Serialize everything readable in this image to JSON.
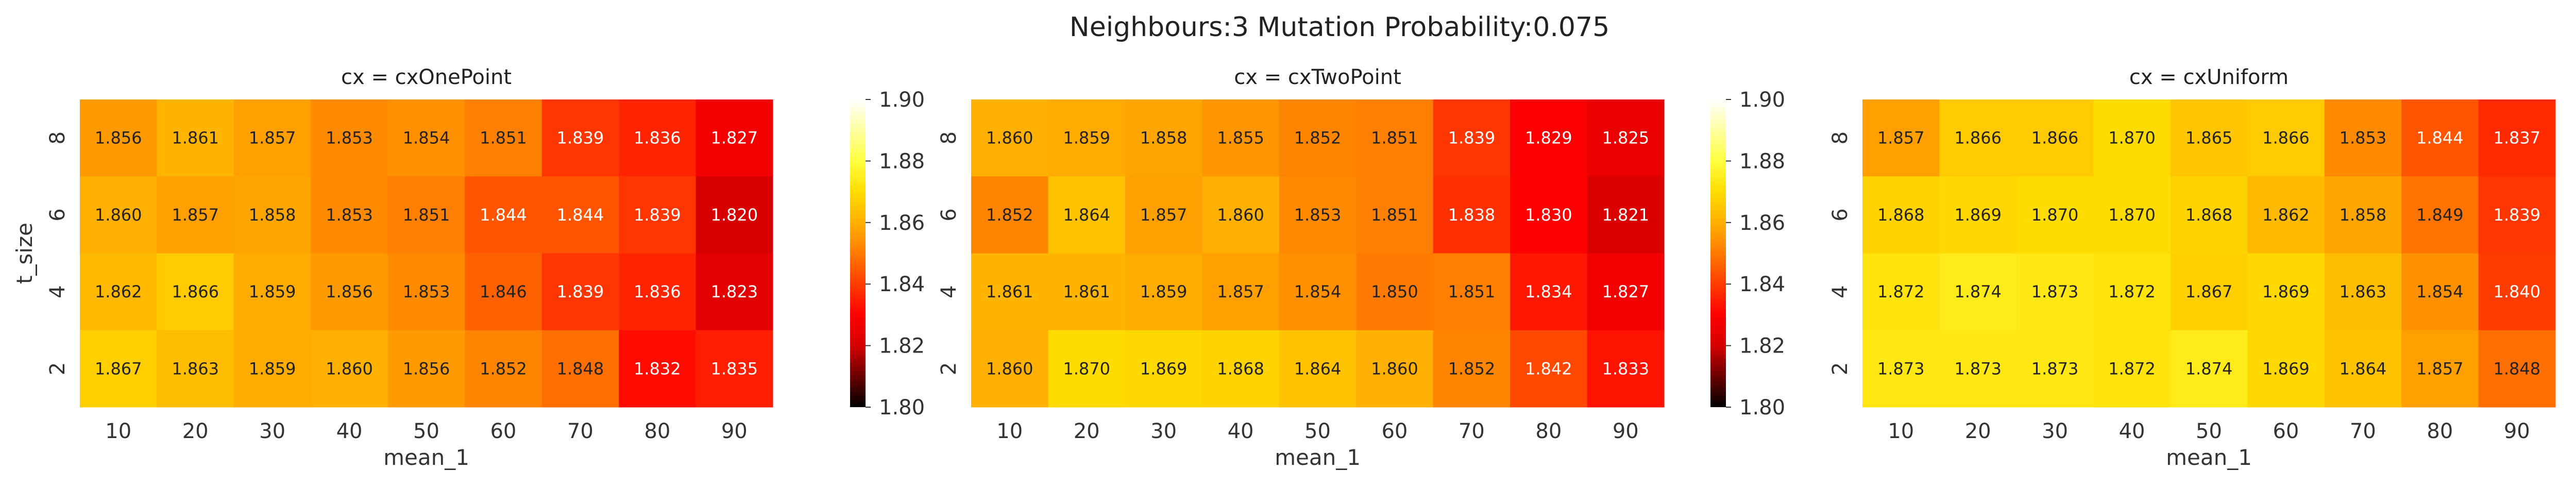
{
  "title": "Neighbours:3 Mutation Probability:0.075",
  "chart_data": [
    {
      "type": "heatmap",
      "title": "cx = cxOnePoint",
      "xlabel": "mean_1",
      "ylabel": "t_size",
      "x": [
        "10",
        "20",
        "30",
        "40",
        "50",
        "60",
        "70",
        "80",
        "90"
      ],
      "y": [
        "8",
        "6",
        "4",
        "2"
      ],
      "values": [
        [
          1.856,
          1.861,
          1.857,
          1.853,
          1.854,
          1.851,
          1.839,
          1.836,
          1.827
        ],
        [
          1.86,
          1.857,
          1.858,
          1.853,
          1.851,
          1.844,
          1.844,
          1.839,
          1.82
        ],
        [
          1.862,
          1.866,
          1.859,
          1.856,
          1.853,
          1.846,
          1.839,
          1.836,
          1.823
        ],
        [
          1.867,
          1.863,
          1.859,
          1.86,
          1.856,
          1.852,
          1.848,
          1.832,
          1.835
        ]
      ],
      "colorbar": {
        "range": [
          1.8,
          1.9
        ],
        "ticks": [
          "1.80",
          "1.82",
          "1.84",
          "1.86",
          "1.88",
          "1.90"
        ],
        "colormap": "hot"
      }
    },
    {
      "type": "heatmap",
      "title": "cx = cxTwoPoint",
      "xlabel": "mean_1",
      "ylabel": "",
      "x": [
        "10",
        "20",
        "30",
        "40",
        "50",
        "60",
        "70",
        "80",
        "90"
      ],
      "y": [
        "8",
        "6",
        "4",
        "2"
      ],
      "values": [
        [
          1.86,
          1.859,
          1.858,
          1.855,
          1.852,
          1.851,
          1.839,
          1.829,
          1.825
        ],
        [
          1.852,
          1.864,
          1.857,
          1.86,
          1.853,
          1.851,
          1.838,
          1.83,
          1.821
        ],
        [
          1.861,
          1.861,
          1.859,
          1.857,
          1.854,
          1.85,
          1.851,
          1.834,
          1.827
        ],
        [
          1.86,
          1.87,
          1.869,
          1.868,
          1.864,
          1.86,
          1.852,
          1.842,
          1.833
        ]
      ],
      "colorbar": {
        "range": [
          1.8,
          1.9
        ],
        "ticks": [
          "1.80",
          "1.82",
          "1.84",
          "1.86",
          "1.88",
          "1.90"
        ],
        "colormap": "hot"
      }
    },
    {
      "type": "heatmap",
      "title": "cx = cxUniform",
      "xlabel": "mean_1",
      "ylabel": "",
      "x": [
        "10",
        "20",
        "30",
        "40",
        "50",
        "60",
        "70",
        "80",
        "90"
      ],
      "y": [
        "8",
        "6",
        "4",
        "2"
      ],
      "values": [
        [
          1.857,
          1.866,
          1.866,
          1.87,
          1.865,
          1.866,
          1.853,
          1.844,
          1.837
        ],
        [
          1.868,
          1.869,
          1.87,
          1.87,
          1.868,
          1.862,
          1.858,
          1.849,
          1.839
        ],
        [
          1.872,
          1.874,
          1.873,
          1.872,
          1.867,
          1.869,
          1.863,
          1.854,
          1.84
        ],
        [
          1.873,
          1.873,
          1.873,
          1.872,
          1.874,
          1.869,
          1.864,
          1.857,
          1.848
        ]
      ],
      "colorbar": {
        "range": [
          1.8,
          1.9
        ],
        "ticks": [
          "1.80",
          "1.82",
          "1.84",
          "1.86",
          "1.88",
          "1.90"
        ],
        "colormap": "hot"
      }
    }
  ]
}
